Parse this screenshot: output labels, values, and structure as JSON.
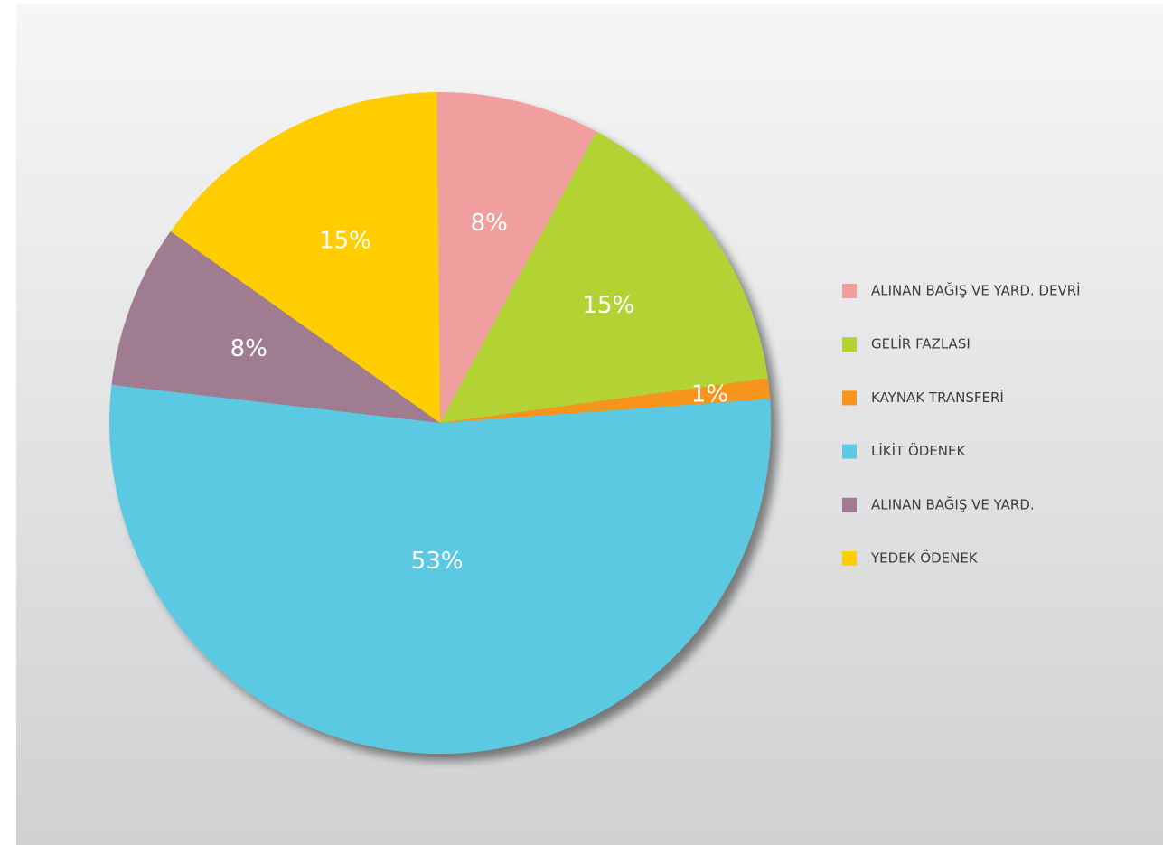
{
  "chart_data": {
    "type": "pie",
    "categories": [
      "ALINAN BAĞIŞ VE YARD. DEVRİ",
      "GELİR FAZLASI",
      "KAYNAK TRANSFERİ",
      "LİKİT ÖDENEK",
      "ALINAN BAĞIŞ VE YARD.",
      "YEDEK ÖDENEK"
    ],
    "values": [
      8,
      15,
      1,
      53,
      8,
      15
    ],
    "value_labels": [
      "8%",
      "15%",
      "1%",
      "53%",
      "8%",
      "15%"
    ],
    "colors": [
      "#f09e9e",
      "#b3d334",
      "#f7941d",
      "#5bc9e2",
      "#a07b91",
      "#ffcd00"
    ],
    "legend": "right"
  }
}
